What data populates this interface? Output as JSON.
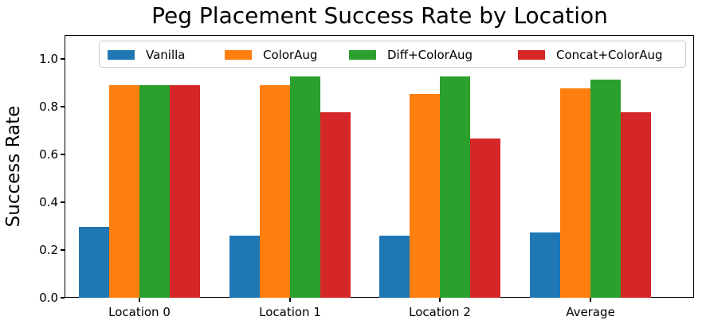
{
  "chart_data": {
    "type": "bar",
    "title": "Peg Placement Success Rate by Location",
    "xlabel": "",
    "ylabel": "Success Rate",
    "ylim": [
      0,
      1.1
    ],
    "yticks": [
      "0.0",
      "0.2",
      "0.4",
      "0.6",
      "0.8",
      "1.0"
    ],
    "categories": [
      "Location 0",
      "Location 1",
      "Location 2",
      "Average"
    ],
    "series": [
      {
        "name": "Vanilla",
        "color": "#1f77b4",
        "values": [
          0.296,
          0.259,
          0.259,
          0.272
        ]
      },
      {
        "name": "ColorAug",
        "color": "#ff7f0e",
        "values": [
          0.889,
          0.889,
          0.852,
          0.877
        ]
      },
      {
        "name": "Diff+ColorAug",
        "color": "#2ca02c",
        "values": [
          0.889,
          0.926,
          0.926,
          0.914
        ]
      },
      {
        "name": "Concat+ColorAug",
        "color": "#d62728",
        "values": [
          0.889,
          0.778,
          0.667,
          0.778
        ]
      }
    ],
    "legend_position": "upper center",
    "grid": false
  }
}
